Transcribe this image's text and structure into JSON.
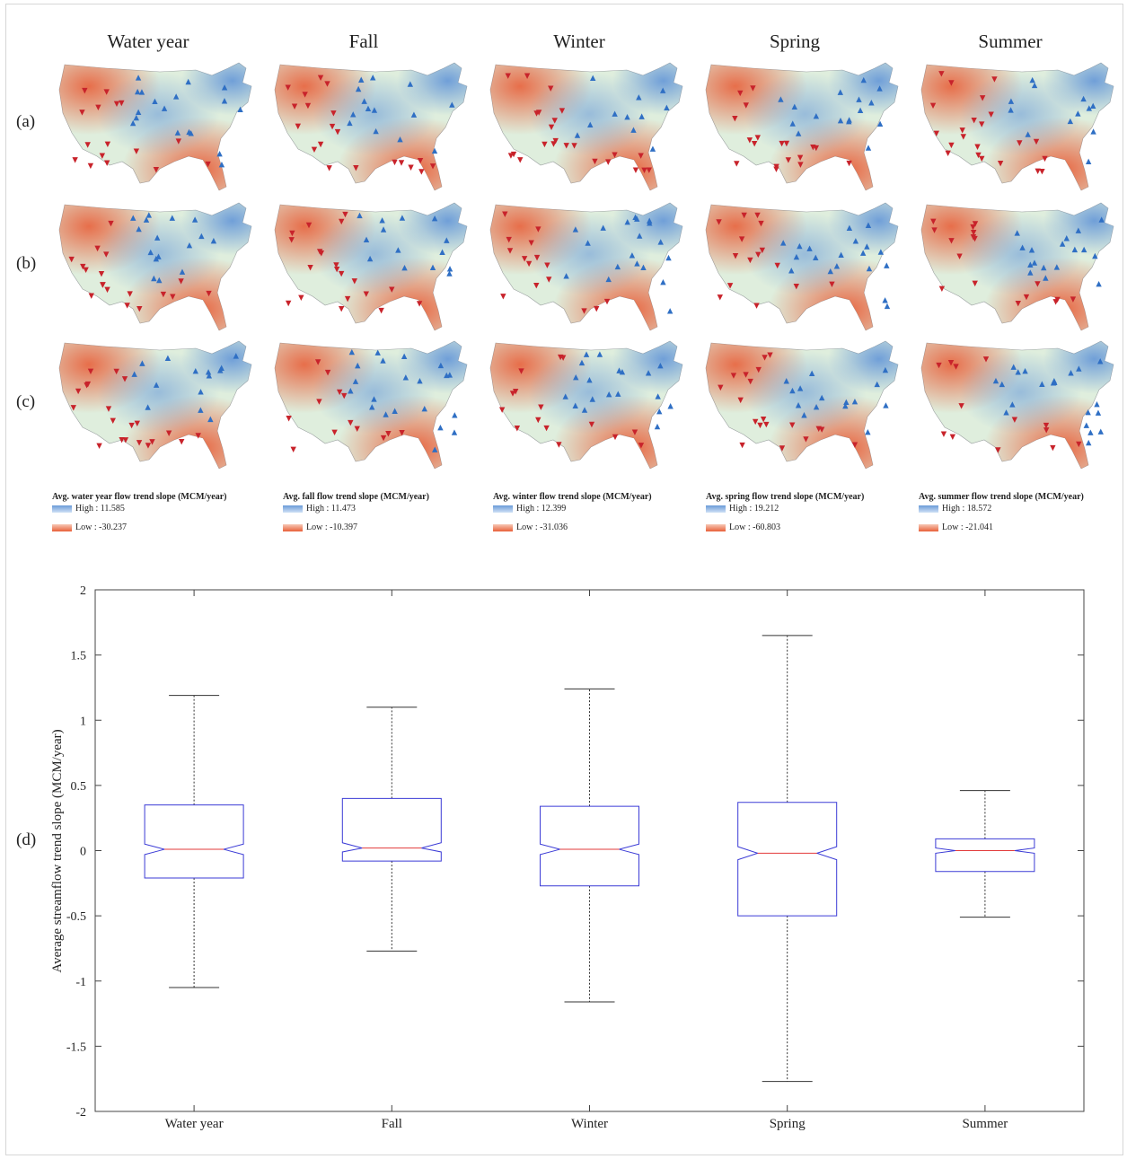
{
  "columns": [
    "Water year",
    "Fall",
    "Winter",
    "Spring",
    "Summer"
  ],
  "rows": [
    "(a)",
    "(b)",
    "(c)"
  ],
  "panel_d_label": "(d)",
  "colors": {
    "high": "#6a9bd8",
    "low": "#e8603a",
    "increase_marker": "#2f6fc4",
    "decrease_marker": "#c8232b",
    "box_outline": "#3b3bd6",
    "median": "#e23a3a"
  },
  "legends": [
    {
      "title": "Avg. water year flow trend slope (MCM/year)",
      "high": "High : 11.585",
      "low": "Low : -30.237"
    },
    {
      "title": "Avg. fall flow trend slope (MCM/year)",
      "high": "High : 11.473",
      "low": "Low : -10.397"
    },
    {
      "title": "Avg. winter flow trend slope (MCM/year)",
      "high": "High : 12.399",
      "low": "Low : -31.036"
    },
    {
      "title": "Avg. spring flow trend slope (MCM/year)",
      "high": "High : 19.212",
      "low": "Low : -60.803"
    },
    {
      "title": "Avg. summer flow trend slope (MCM/year)",
      "high": "High : 18.572",
      "low": "Low : -21.041"
    }
  ],
  "chart_data": {
    "type": "box",
    "categories": [
      "Water year",
      "Fall",
      "Winter",
      "Spring",
      "Summer"
    ],
    "ylabel": "Average streamflow trend slope (MCM/year)",
    "ylim": [
      -2,
      2
    ],
    "yticks": [
      "-2",
      "-1.5",
      "-1",
      "-0.5",
      "0",
      "0.5",
      "1",
      "1.5",
      "2"
    ],
    "notched": true,
    "boxes": [
      {
        "name": "Water year",
        "whisker_low": -1.05,
        "q1": -0.21,
        "median": 0.01,
        "q3": 0.35,
        "whisker_high": 1.19,
        "notch_low": -0.03,
        "notch_high": 0.05
      },
      {
        "name": "Fall",
        "whisker_low": -0.77,
        "q1": -0.08,
        "median": 0.02,
        "q3": 0.4,
        "whisker_high": 1.1,
        "notch_low": -0.01,
        "notch_high": 0.06
      },
      {
        "name": "Winter",
        "whisker_low": -1.16,
        "q1": -0.27,
        "median": 0.01,
        "q3": 0.34,
        "whisker_high": 1.24,
        "notch_low": -0.03,
        "notch_high": 0.05
      },
      {
        "name": "Spring",
        "whisker_low": -1.77,
        "q1": -0.5,
        "median": -0.02,
        "q3": 0.37,
        "whisker_high": 1.65,
        "notch_low": -0.07,
        "notch_high": 0.03
      },
      {
        "name": "Summer",
        "whisker_low": -0.51,
        "q1": -0.16,
        "median": 0.0,
        "q3": 0.09,
        "whisker_high": 0.46,
        "notch_low": -0.02,
        "notch_high": 0.02
      }
    ]
  }
}
